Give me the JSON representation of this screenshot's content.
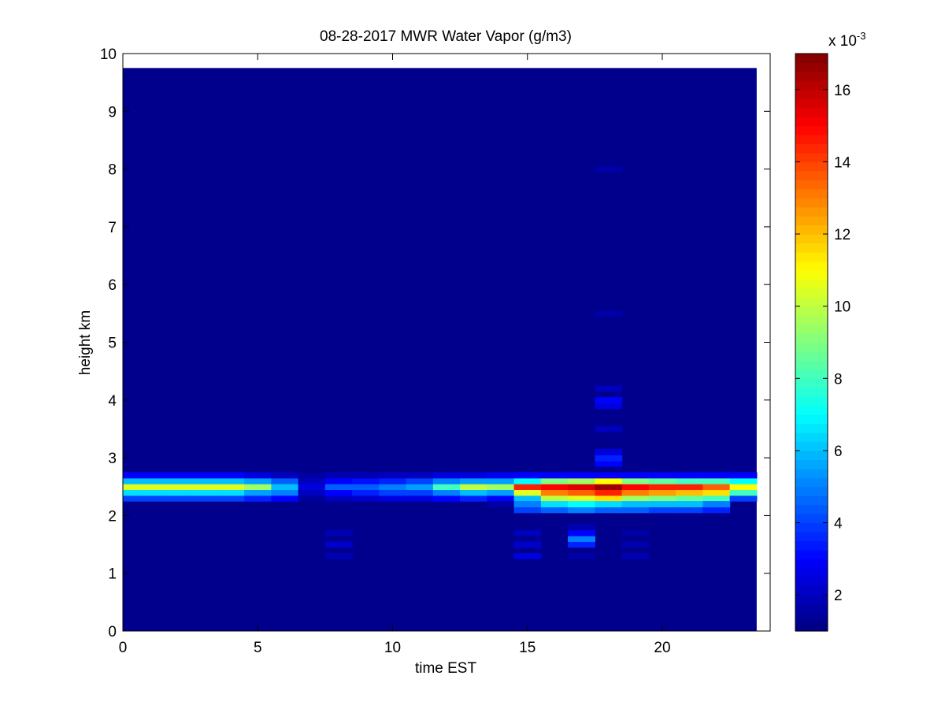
{
  "chart_data": {
    "type": "heatmap",
    "title": "08-28-2017 MWR Water Vapor (g/m3)",
    "xlabel": "time EST",
    "ylabel": "height km",
    "xlim": [
      0,
      24
    ],
    "ylim": [
      0,
      10
    ],
    "x_ticks": [
      "0",
      "5",
      "10",
      "15",
      "20"
    ],
    "y_ticks": [
      "0",
      "1",
      "2",
      "3",
      "4",
      "5",
      "6",
      "7",
      "8",
      "9",
      "10"
    ],
    "x_tick_values": [
      0,
      5,
      10,
      15,
      20
    ],
    "y_tick_values": [
      0,
      1,
      2,
      3,
      4,
      5,
      6,
      7,
      8,
      9,
      10
    ],
    "data_extent": {
      "x": [
        0,
        23.5
      ],
      "y": [
        0,
        9.75
      ]
    },
    "colormap": "jet",
    "colorbar": {
      "range": [
        1.0,
        17.0
      ],
      "ticks": [
        "2",
        "4",
        "6",
        "8",
        "10",
        "12",
        "14",
        "16"
      ],
      "tick_values": [
        2,
        4,
        6,
        8,
        10,
        12,
        14,
        16
      ],
      "multiplier_label": "x 10",
      "multiplier_exponent": "-3"
    },
    "background_value": 1.2,
    "hour_columns": [
      0,
      1,
      2,
      3,
      4,
      5,
      6,
      7,
      8,
      9,
      10,
      11,
      12,
      13,
      14,
      15,
      16,
      17,
      18,
      19,
      20,
      21,
      22,
      23
    ],
    "band_heights_km": [
      2.3,
      2.4,
      2.5,
      2.6,
      2.7
    ],
    "band_values": [
      [
        4.0,
        6.5,
        10.5,
        6.0,
        3.0
      ],
      [
        4.0,
        6.5,
        10.5,
        6.0,
        3.0
      ],
      [
        4.0,
        6.5,
        10.5,
        6.0,
        3.0
      ],
      [
        4.0,
        6.5,
        10.5,
        6.0,
        3.0
      ],
      [
        4.0,
        6.5,
        10.5,
        6.0,
        3.0
      ],
      [
        3.5,
        5.5,
        9.5,
        5.5,
        2.5
      ],
      [
        3.0,
        5.0,
        6.0,
        4.5,
        2.0
      ],
      [
        1.5,
        2.0,
        2.5,
        2.0,
        1.5
      ],
      [
        2.0,
        3.0,
        4.5,
        3.0,
        1.8
      ],
      [
        2.2,
        3.5,
        4.5,
        3.2,
        1.8
      ],
      [
        2.5,
        4.0,
        5.0,
        3.5,
        2.0
      ],
      [
        2.5,
        4.0,
        5.5,
        4.0,
        2.0
      ],
      [
        3.0,
        5.0,
        8.0,
        5.0,
        2.5
      ],
      [
        3.5,
        6.0,
        10.0,
        5.5,
        2.5
      ],
      [
        3.0,
        5.5,
        9.5,
        5.5,
        2.8
      ],
      [
        6.0,
        10.5,
        14.5,
        7.0,
        3.0
      ],
      [
        10.0,
        13.0,
        15.0,
        9.0,
        3.0
      ],
      [
        10.5,
        13.5,
        15.5,
        9.5,
        3.0
      ],
      [
        11.5,
        14.5,
        16.5,
        11.0,
        3.0
      ],
      [
        9.5,
        13.0,
        15.0,
        9.0,
        3.0
      ],
      [
        9.0,
        12.5,
        14.5,
        8.5,
        3.0
      ],
      [
        8.5,
        12.0,
        14.5,
        8.0,
        3.0
      ],
      [
        8.0,
        11.5,
        13.5,
        8.0,
        3.0
      ],
      [
        4.0,
        8.0,
        11.0,
        7.0,
        3.0
      ]
    ],
    "extra_cells": [
      {
        "hour": 8,
        "y": 1.3,
        "value": 1.8
      },
      {
        "hour": 8,
        "y": 1.5,
        "value": 2.2
      },
      {
        "hour": 8,
        "y": 1.7,
        "value": 1.8
      },
      {
        "hour": 14,
        "y": 2.2,
        "value": 1.6
      },
      {
        "hour": 15,
        "y": 1.3,
        "value": 2.5
      },
      {
        "hour": 15,
        "y": 1.5,
        "value": 2.2
      },
      {
        "hour": 15,
        "y": 1.7,
        "value": 2.0
      },
      {
        "hour": 15,
        "y": 2.1,
        "value": 4.0
      },
      {
        "hour": 15,
        "y": 2.2,
        "value": 5.0
      },
      {
        "hour": 16,
        "y": 2.1,
        "value": 4.5
      },
      {
        "hour": 16,
        "y": 2.2,
        "value": 6.5
      },
      {
        "hour": 17,
        "y": 1.3,
        "value": 1.6
      },
      {
        "hour": 17,
        "y": 1.5,
        "value": 3.5
      },
      {
        "hour": 17,
        "y": 1.6,
        "value": 5.0
      },
      {
        "hour": 17,
        "y": 1.7,
        "value": 3.0
      },
      {
        "hour": 17,
        "y": 1.8,
        "value": 1.8
      },
      {
        "hour": 17,
        "y": 2.1,
        "value": 5.0
      },
      {
        "hour": 17,
        "y": 2.2,
        "value": 7.0
      },
      {
        "hour": 18,
        "y": 2.1,
        "value": 4.5
      },
      {
        "hour": 18,
        "y": 2.2,
        "value": 6.5
      },
      {
        "hour": 18,
        "y": 2.9,
        "value": 3.0
      },
      {
        "hour": 18,
        "y": 3.0,
        "value": 3.5
      },
      {
        "hour": 18,
        "y": 3.1,
        "value": 2.5
      },
      {
        "hour": 18,
        "y": 3.5,
        "value": 2.0
      },
      {
        "hour": 18,
        "y": 3.9,
        "value": 2.5
      },
      {
        "hour": 18,
        "y": 4.0,
        "value": 3.0
      },
      {
        "hour": 18,
        "y": 4.2,
        "value": 2.0
      },
      {
        "hour": 18,
        "y": 5.5,
        "value": 1.6
      },
      {
        "hour": 18,
        "y": 8.0,
        "value": 1.6
      },
      {
        "hour": 19,
        "y": 1.3,
        "value": 1.8
      },
      {
        "hour": 19,
        "y": 1.5,
        "value": 1.7
      },
      {
        "hour": 19,
        "y": 1.7,
        "value": 1.6
      },
      {
        "hour": 19,
        "y": 2.1,
        "value": 4.5
      },
      {
        "hour": 19,
        "y": 2.2,
        "value": 6.0
      },
      {
        "hour": 20,
        "y": 2.1,
        "value": 4.0
      },
      {
        "hour": 20,
        "y": 2.2,
        "value": 6.0
      },
      {
        "hour": 21,
        "y": 2.1,
        "value": 4.0
      },
      {
        "hour": 21,
        "y": 2.2,
        "value": 6.0
      },
      {
        "hour": 22,
        "y": 2.1,
        "value": 3.5
      },
      {
        "hour": 22,
        "y": 2.2,
        "value": 5.0
      }
    ]
  }
}
